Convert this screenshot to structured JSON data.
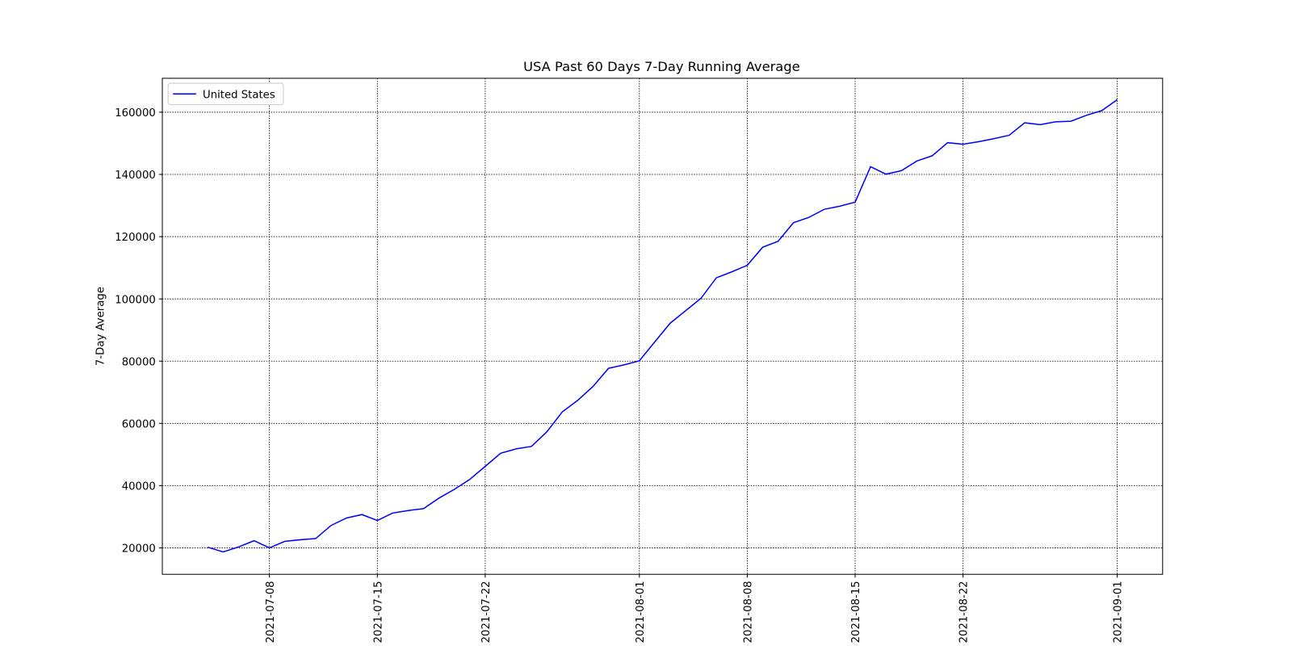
{
  "chart_data": {
    "type": "line",
    "title": "USA Past 60 Days 7-Day Running Average",
    "ylabel": "7-Day Average",
    "x": [
      "2021-07-04",
      "2021-07-05",
      "2021-07-06",
      "2021-07-07",
      "2021-07-08",
      "2021-07-09",
      "2021-07-10",
      "2021-07-11",
      "2021-07-12",
      "2021-07-13",
      "2021-07-14",
      "2021-07-15",
      "2021-07-16",
      "2021-07-17",
      "2021-07-18",
      "2021-07-19",
      "2021-07-20",
      "2021-07-21",
      "2021-07-22",
      "2021-07-23",
      "2021-07-24",
      "2021-07-25",
      "2021-07-26",
      "2021-07-27",
      "2021-07-28",
      "2021-07-29",
      "2021-07-30",
      "2021-07-31",
      "2021-08-01",
      "2021-08-02",
      "2021-08-03",
      "2021-08-04",
      "2021-08-05",
      "2021-08-06",
      "2021-08-07",
      "2021-08-08",
      "2021-08-09",
      "2021-08-10",
      "2021-08-11",
      "2021-08-12",
      "2021-08-13",
      "2021-08-14",
      "2021-08-15",
      "2021-08-16",
      "2021-08-17",
      "2021-08-18",
      "2021-08-19",
      "2021-08-20",
      "2021-08-21",
      "2021-08-22",
      "2021-08-23",
      "2021-08-24",
      "2021-08-25",
      "2021-08-26",
      "2021-08-27",
      "2021-08-28",
      "2021-08-29",
      "2021-08-30",
      "2021-08-31",
      "2021-09-01"
    ],
    "series": [
      {
        "name": "United States",
        "color": "#0000ff",
        "values": [
          20200,
          18700,
          20300,
          22300,
          20000,
          22100,
          22600,
          23000,
          27200,
          29600,
          30700,
          28800,
          31200,
          32000,
          32600,
          36000,
          38800,
          42000,
          46200,
          50400,
          51800,
          52600,
          57300,
          63700,
          67400,
          71900,
          77700,
          78800,
          80100,
          86200,
          92200,
          96200,
          100200,
          106800,
          108700,
          110800,
          116600,
          118500,
          124500,
          126200,
          128800,
          129800,
          131100,
          142500,
          140100,
          141200,
          144300,
          146000,
          150200,
          149700,
          150500,
          151500,
          152600,
          156600,
          156000,
          156900,
          157100,
          159000,
          160500,
          164000
        ]
      }
    ],
    "xlim": [
      "2021-07-01T01:12",
      "2021-09-03T22:48"
    ],
    "xticks": [
      "2021-07-08",
      "2021-07-15",
      "2021-07-22",
      "2021-08-01",
      "2021-08-08",
      "2021-08-15",
      "2021-08-22",
      "2021-09-01"
    ],
    "ylim": [
      11500,
      170900
    ],
    "yticks": [
      20000,
      40000,
      60000,
      80000,
      100000,
      120000,
      140000,
      160000
    ],
    "grid": true,
    "legend": "upper left"
  }
}
